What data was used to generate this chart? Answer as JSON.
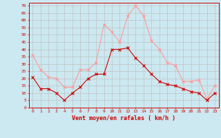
{
  "hours": [
    0,
    1,
    2,
    3,
    4,
    5,
    6,
    7,
    8,
    9,
    10,
    11,
    12,
    13,
    14,
    15,
    16,
    17,
    18,
    19,
    20,
    21,
    22,
    23
  ],
  "wind_avg": [
    21,
    13,
    13,
    10,
    5,
    10,
    14,
    20,
    23,
    23,
    40,
    40,
    41,
    34,
    29,
    23,
    18,
    16,
    15,
    13,
    11,
    10,
    5,
    10
  ],
  "wind_gust": [
    36,
    26,
    21,
    20,
    14,
    14,
    26,
    26,
    31,
    57,
    52,
    45,
    63,
    70,
    63,
    46,
    40,
    31,
    29,
    18,
    18,
    19,
    6,
    15
  ],
  "avg_color": "#cc0000",
  "gust_color": "#ff9999",
  "bg_color": "#cce8f0",
  "grid_color": "#bbbbbb",
  "xlabel": "Vent moyen/en rafales ( km/h )",
  "xlabel_color": "#cc0000",
  "yticks": [
    0,
    5,
    10,
    15,
    20,
    25,
    30,
    35,
    40,
    45,
    50,
    55,
    60,
    65,
    70
  ],
  "ylim": [
    0,
    72
  ],
  "xlim": [
    -0.5,
    23.5
  ]
}
